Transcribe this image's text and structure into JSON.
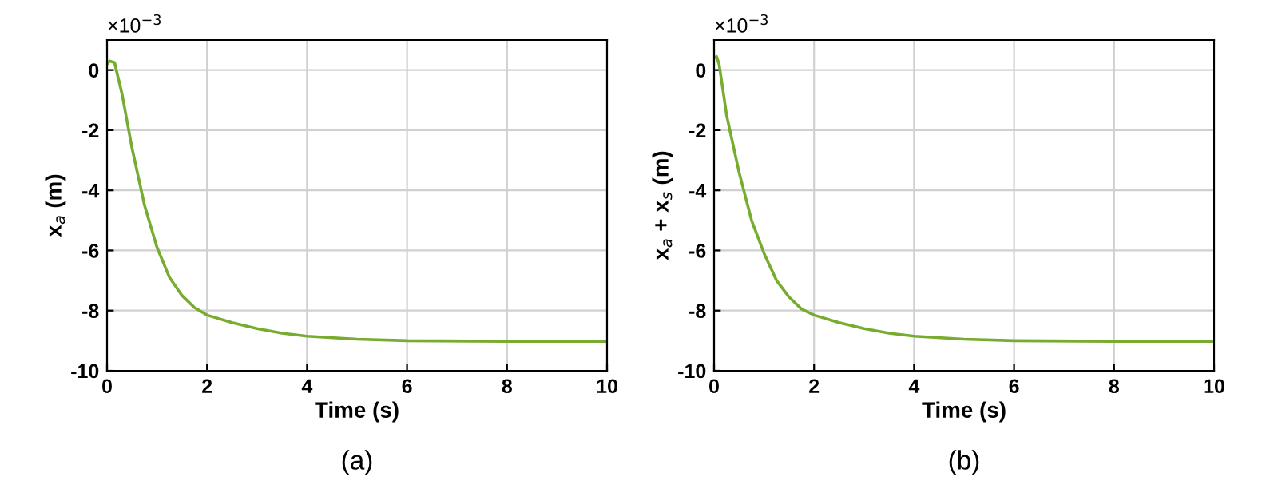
{
  "chart_data": [
    {
      "type": "line",
      "xlabel": "Time (s)",
      "ylabel": "x$_{a}$ (m)",
      "annotations": [
        "×10$^{−3}$",
        "(a)"
      ],
      "xlim": [
        0,
        10
      ],
      "xticks": [
        0,
        2,
        4,
        6,
        8,
        10
      ],
      "ylim": [
        -10,
        1
      ],
      "yticks": [
        -10,
        -8,
        -6,
        -4,
        -2,
        0
      ],
      "grid": true,
      "series": [
        {
          "color": "#77ac30",
          "x": [
            0,
            0.05,
            0.15,
            0.3,
            0.5,
            0.75,
            1.0,
            1.25,
            1.5,
            1.75,
            2,
            2.5,
            3,
            3.5,
            4,
            5,
            6,
            8,
            10
          ],
          "values": [
            0.2,
            0.3,
            0.25,
            -0.8,
            -2.6,
            -4.5,
            -5.9,
            -6.9,
            -7.5,
            -7.9,
            -8.15,
            -8.4,
            -8.6,
            -8.75,
            -8.85,
            -8.95,
            -9.0,
            -9.02,
            -9.02
          ]
        }
      ]
    },
    {
      "type": "line",
      "xlabel": "Time (s)",
      "ylabel": "x$_{a}$ + x$_{s}$ (m)",
      "annotations": [
        "×10$^{−3}$",
        "(b)"
      ],
      "xlim": [
        0,
        10
      ],
      "xticks": [
        0,
        2,
        4,
        6,
        8,
        10
      ],
      "ylim": [
        -10,
        1
      ],
      "yticks": [
        -10,
        -8,
        -6,
        -4,
        -2,
        0
      ],
      "grid": true,
      "series": [
        {
          "color": "#77ac30",
          "x": [
            0,
            0.05,
            0.1,
            0.25,
            0.5,
            0.75,
            1.0,
            1.25,
            1.5,
            1.75,
            2,
            2.5,
            3,
            3.5,
            4,
            5,
            6,
            8,
            10
          ],
          "values": [
            0.4,
            0.45,
            0.2,
            -1.5,
            -3.4,
            -5.0,
            -6.1,
            -7.0,
            -7.55,
            -7.95,
            -8.15,
            -8.4,
            -8.6,
            -8.75,
            -8.85,
            -8.95,
            -9.0,
            -9.02,
            -9.02
          ]
        }
      ]
    }
  ]
}
